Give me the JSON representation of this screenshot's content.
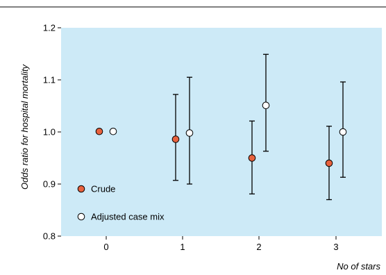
{
  "chart_data": {
    "type": "scatter",
    "xlabel": "No of stars",
    "ylabel": "Odds ratio for hospital mortality",
    "categories": [
      "0",
      "1",
      "2",
      "3"
    ],
    "ylim": [
      0.8,
      1.2
    ],
    "yticks": [
      "0.8",
      "0.9",
      "1.0",
      "1.1",
      "1.2"
    ],
    "grid": false,
    "legend_position": "lower-left",
    "colors": {
      "plot_background": "#cdeaf7",
      "crude_fill": "#e8623e",
      "adjusted_fill": "#ffffff",
      "marker_stroke": "#000000",
      "top_rule": "#000000"
    },
    "series": [
      {
        "name": "Crude",
        "marker": "filled-circle",
        "values": [
          1.001,
          0.986,
          0.95,
          0.94
        ],
        "lower": [
          null,
          0.907,
          0.881,
          0.87
        ],
        "upper": [
          null,
          1.072,
          1.021,
          1.011
        ]
      },
      {
        "name": "Adjusted case mix",
        "marker": "open-circle",
        "values": [
          1.001,
          0.998,
          1.051,
          1.0
        ],
        "lower": [
          null,
          0.9,
          0.963,
          0.913
        ],
        "upper": [
          null,
          1.105,
          1.149,
          1.096
        ]
      }
    ]
  }
}
